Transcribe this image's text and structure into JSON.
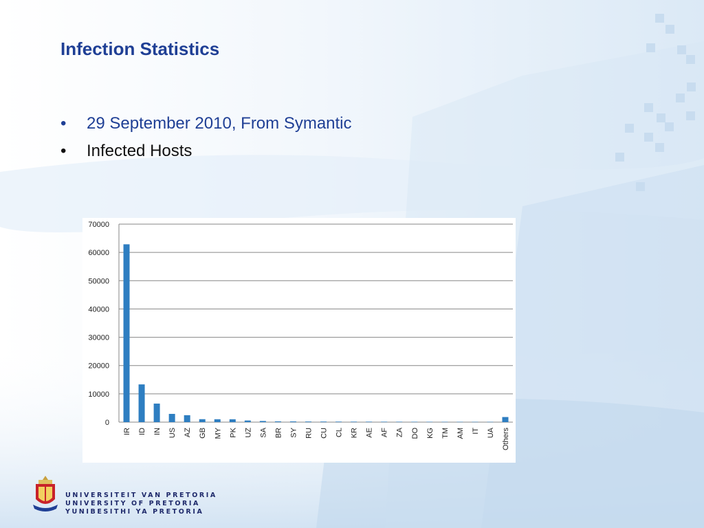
{
  "slide": {
    "title": "Infection Statistics",
    "bullets": [
      {
        "marker": "•",
        "text": "29 September 2010, From Symantic"
      },
      {
        "marker": "•",
        "text": "Infected Hosts"
      }
    ]
  },
  "logo": {
    "lines": [
      "UNIVERSITEIT VAN PRETORIA",
      "UNIVERSITY OF PRETORIA",
      "YUNIBESITHI YA PRETORIA"
    ]
  },
  "colors": {
    "title": "#1f3f95",
    "bar": "#2e7ec1",
    "grid": "#868686"
  },
  "chart_data": {
    "type": "bar",
    "title": "",
    "xlabel": "",
    "ylabel": "",
    "ylim": [
      0,
      70000
    ],
    "yticks": [
      0,
      10000,
      20000,
      30000,
      40000,
      50000,
      60000,
      70000
    ],
    "grid": true,
    "categories": [
      "IR",
      "ID",
      "IN",
      "US",
      "AZ",
      "GB",
      "MY",
      "PK",
      "UZ",
      "SA",
      "BR",
      "SY",
      "RU",
      "CU",
      "CL",
      "KR",
      "AE",
      "AF",
      "ZA",
      "DO",
      "KG",
      "TM",
      "AM",
      "IT",
      "UA",
      "Others"
    ],
    "values": [
      62867,
      13336,
      6552,
      2913,
      2439,
      1038,
      1013,
      1004,
      575,
      400,
      268,
      250,
      213,
      200,
      180,
      170,
      160,
      150,
      140,
      130,
      120,
      110,
      105,
      100,
      95,
      1800
    ]
  }
}
